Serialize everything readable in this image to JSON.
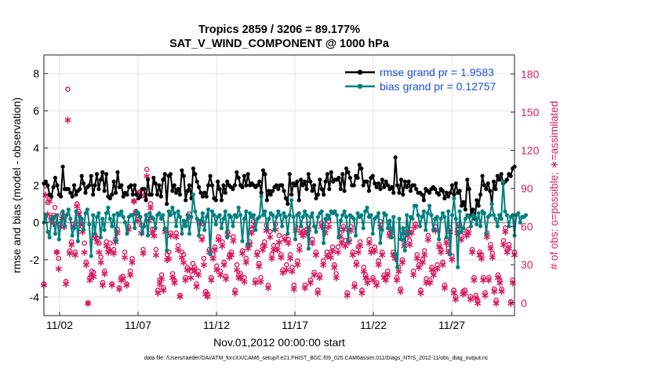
{
  "chart_data": {
    "type": "line",
    "title_line1": "Tropics 2859 / 3206 = 89.177%",
    "title_line2": "SAT_V_WIND_COMPONENT @ 1000 hPa",
    "xlabel": "Nov.01,2012 00:00:00 start",
    "ylabel_left": "rmse and bias (model - observation)",
    "ylabel_right": "# of obs: o=possible; ∗=assimilated",
    "footnote": "data file: /Users/raeder/DAI/ATM_forcXX/CAM6_setup/f.e21.FHIST_BGC.f09_025.CAM6assim.011/Diags_NTrS_2012-11/obs_diag_output.nc",
    "x_ticks": [
      {
        "day": 2,
        "label": "11/02"
      },
      {
        "day": 7,
        "label": "11/07"
      },
      {
        "day": 12,
        "label": "11/12"
      },
      {
        "day": 17,
        "label": "11/17"
      },
      {
        "day": 22,
        "label": "11/22"
      },
      {
        "day": 27,
        "label": "11/27"
      }
    ],
    "xlim": [
      1,
      31
    ],
    "ylim_left": [
      -5,
      9
    ],
    "ylim_right": [
      -10,
      195
    ],
    "y_ticks_left": [
      {
        "v": -4,
        "label": "-4"
      },
      {
        "v": -2,
        "label": "-2"
      },
      {
        "v": 0,
        "label": "0"
      },
      {
        "v": 2,
        "label": "2"
      },
      {
        "v": 4,
        "label": "4"
      },
      {
        "v": 6,
        "label": "6"
      },
      {
        "v": 8,
        "label": "8"
      }
    ],
    "y_ticks_right": [
      {
        "v": 0,
        "label": "0"
      },
      {
        "v": 30,
        "label": "30"
      },
      {
        "v": 60,
        "label": "60"
      },
      {
        "v": 90,
        "label": "90"
      },
      {
        "v": 120,
        "label": "120"
      },
      {
        "v": 150,
        "label": "150"
      },
      {
        "v": 180,
        "label": "180"
      }
    ],
    "series": [
      {
        "name": "rmse",
        "legend": "rmse grand pr = 1.9583",
        "color": "#000000",
        "values": [
          2.1,
          2.2,
          2.0,
          1.5,
          1.4,
          1.9,
          2.4,
          2.0,
          1.5,
          1.4,
          3.0,
          1.8,
          1.8,
          1.8,
          1.6,
          1.4,
          2.0,
          1.5,
          1.7,
          1.8,
          2.5,
          2.1,
          1.6,
          1.9,
          2.0,
          2.5,
          1.5,
          2.0,
          2.6,
          1.8,
          2.3,
          2.7,
          1.7,
          2.6,
          1.4,
          1.3,
          1.5,
          2.2,
          1.6,
          2.7,
          1.9,
          2.0,
          1.4,
          1.6,
          1.5,
          1.9,
          2.0,
          1.5,
          2.0,
          1.5,
          1.3,
          1.4,
          1.8,
          1.8,
          1.2,
          2.3,
          1.5,
          1.5,
          2.4,
          2.1,
          1.5,
          2.0,
          1.4,
          2.3,
          2.6,
          1.0,
          2.5,
          2.6,
          1.7,
          2.0,
          1.6,
          1.8,
          1.5,
          2.8,
          2.5,
          1.2,
          1.7,
          2.0,
          1.3,
          2.9,
          2.6,
          2.2,
          1.9,
          1.6,
          1.4,
          1.6,
          1.4,
          2.0,
          2.5,
          2.0,
          1.3,
          1.2,
          2.2,
          1.8,
          1.2,
          2.0,
          1.6,
          2.2,
          2.0,
          1.9,
          1.8,
          2.0,
          2.7,
          2.4,
          2.0,
          1.9,
          2.5,
          2.0,
          2.6,
          2.0,
          2.1,
          2.0,
          1.9,
          2.0,
          2.2,
          1.6,
          2.8,
          2.6,
          1.2,
          1.7,
          1.5,
          1.7,
          1.9,
          2.0,
          1.8,
          2.0,
          2.0,
          1.7,
          1.3,
          1.0,
          2.6,
          1.5,
          2.1,
          2.0,
          2.2,
          1.2,
          2.3,
          2.0,
          2.2,
          1.8,
          2.6,
          2.2,
          1.7,
          2.0,
          1.3,
          1.5,
          2.3,
          1.8,
          1.5,
          2.2,
          2.6,
          1.8,
          2.7,
          2.2,
          2.3,
          2.3,
          2.4,
          1.8,
          2.6,
          1.7,
          2.9,
          2.7,
          2.4,
          2.0,
          2.0,
          2.5,
          2.4,
          3.1,
          2.9,
          2.0,
          2.2,
          2.2,
          1.7,
          2.4,
          2.5,
          2.1,
          1.9,
          2.1,
          1.8,
          2.3,
          1.9,
          2.2,
          2.0,
          1.8,
          1.9,
          1.6,
          3.5,
          2.0,
          1.6,
          2.3,
          1.5,
          2.2,
          1.9,
          2.2,
          1.7,
          2.0,
          2.0,
          1.8,
          1.6,
          1.6,
          1.5,
          1.2,
          1.8,
          1.7,
          1.6,
          1.8,
          1.9,
          1.8,
          1.6,
          1.5,
          1.8,
          1.7,
          1.3,
          1.6,
          1.4,
          1.6,
          2.0,
          1.5,
          2.1,
          1.6,
          1.7,
          0.9,
          1.1,
          0.7,
          2.3,
          1.8,
          0.4,
          0.7,
          0.2,
          1.2,
          0.9,
          1.5,
          2.5,
          2.0,
          1.8,
          2.1,
          1.7,
          1.0,
          2.2,
          1.8,
          2.5,
          2.3,
          2.6,
          2.1,
          2.2,
          2.3,
          2.6,
          2.5,
          2.9,
          3.0
        ]
      },
      {
        "name": "bias",
        "legend": "bias grand pr = 0.12757",
        "color": "#008080",
        "values": [
          0.0,
          0.4,
          -0.5,
          -0.8,
          0.2,
          0.3,
          -0.6,
          0.4,
          -0.9,
          0.0,
          0.6,
          -0.2,
          0.4,
          0.7,
          0.2,
          -0.7,
          -0.3,
          0.6,
          -1.0,
          0.3,
          0.2,
          -0.4,
          0.5,
          0.7,
          -0.1,
          -1.8,
          0.4,
          -0.6,
          0.3,
          0.5,
          -0.8,
          0.2,
          -0.4,
          0.5,
          0.8,
          0.2,
          -0.2,
          0.4,
          -1.0,
          0.5,
          0.4,
          0.6,
          0.3,
          0.0,
          -0.6,
          0.3,
          0.4,
          0.4,
          -0.3,
          0.6,
          0.5,
          0.3,
          -0.6,
          -0.2,
          0.4,
          -0.7,
          0.5,
          0.3,
          0.2,
          -0.3,
          0.4,
          0.5,
          0.2,
          0.4,
          -0.3,
          -1.5,
          0.6,
          0.4,
          0.8,
          0.5,
          -0.2,
          0.6,
          0.3,
          -0.6,
          0.1,
          -0.2,
          0.4,
          -0.6,
          0.3,
          1.5,
          0.6,
          0.2,
          -0.7,
          0.1,
          0.5,
          -0.4,
          0.3,
          0.7,
          -1.7,
          0.6,
          0.4,
          -0.1,
          0.3,
          0.4,
          -0.3,
          0.2,
          0.6,
          -0.8,
          0.4,
          0.3,
          -0.2,
          0.4,
          0.3,
          0.8,
          0.4,
          -1.0,
          0.2,
          0.6,
          -1.2,
          0.5,
          0.3,
          0.4,
          -0.4,
          0.2,
          0.3,
          1.4,
          0.4,
          0.6,
          -0.3,
          0.2,
          0.5,
          0.4,
          -0.4,
          0.3,
          0.6,
          0.4,
          -0.2,
          0.5,
          0.3,
          -0.6,
          0.4,
          1.2,
          0.3,
          -0.9,
          0.4,
          0.5,
          -0.2,
          0.3,
          0.6,
          0.4,
          -1.4,
          0.3,
          0.5,
          -0.2,
          -0.5,
          0.3,
          0.5,
          0.6,
          -1.1,
          0.2,
          0.4,
          0.2,
          0.6,
          0.5,
          0.6,
          0.4,
          -0.8,
          0.1,
          0.4,
          0.6,
          0.3,
          -1.0,
          0.4,
          0.3,
          0.2,
          -0.7,
          0.5,
          0.3,
          0.4,
          -0.3,
          0.6,
          0.8,
          0.3,
          0.4,
          -0.6,
          0.2,
          0.3,
          0.5,
          -1.1,
          -0.4,
          0.5,
          0.4,
          -0.3,
          0.1,
          -0.8,
          0.3,
          -1.7,
          -2.4,
          0.2,
          -0.9,
          -0.3,
          -1.5,
          0.4,
          -0.6,
          0.3,
          0.2,
          0.9,
          0.9,
          0.4,
          -0.2,
          0.3,
          0.6,
          -0.4,
          0.5,
          0.9,
          0.4,
          -0.4,
          0.2,
          0.3,
          -0.9,
          0.2,
          0.5,
          0.3,
          -0.8,
          0.6,
          -1.7,
          0.4,
          1.3,
          0.2,
          -2.4,
          0.6,
          -0.5,
          -0.3,
          0.2,
          0.4,
          0.3,
          -0.2,
          0.4,
          0.3,
          -0.1,
          0.5,
          -0.2,
          0.6,
          0.5,
          -0.6,
          0.3,
          0.4,
          1.0,
          0.4,
          0.2,
          -0.2,
          0.4,
          0.2,
          2.2,
          0.6,
          0.4,
          -0.2,
          0.3,
          0.4,
          -0.7,
          0.4,
          0.5,
          0.0,
          0.3,
          0.3,
          0.4
        ]
      }
    ],
    "obs_possible": [
      15,
      92,
      79,
      82,
      67,
      69,
      75,
      40,
      35,
      62,
      70,
      68,
      17,
      168,
      41,
      48,
      62,
      40,
      78,
      72,
      65,
      60,
      47,
      32,
      0,
      20,
      25,
      24,
      53,
      51,
      47,
      36,
      16,
      25,
      48,
      42,
      47,
      15,
      42,
      50,
      58,
      12,
      20,
      21,
      40,
      15,
      60,
      25,
      35,
      80,
      72,
      69,
      87,
      61,
      42,
      85,
      105,
      69,
      78,
      58,
      58,
      42,
      10,
      18,
      22,
      12,
      58,
      38,
      40,
      55,
      23,
      18,
      55,
      45,
      6,
      40,
      38,
      20,
      28,
      70,
      25,
      31,
      28,
      15,
      25,
      64,
      52,
      35,
      9,
      7,
      42,
      20,
      38,
      44,
      29,
      52,
      25,
      48,
      32,
      21,
      56,
      38,
      40,
      52,
      10,
      30,
      22,
      23,
      41,
      20,
      35,
      46,
      48,
      58,
      64,
      18,
      40,
      31,
      20,
      45,
      48,
      61,
      14,
      56,
      38,
      45,
      62,
      45,
      53,
      38,
      26,
      52,
      30,
      50,
      38,
      28,
      14,
      60,
      33,
      45,
      58,
      56,
      14,
      58,
      62,
      18,
      50,
      24,
      40,
      10,
      22,
      63,
      33,
      58,
      40,
      64,
      40,
      44,
      30,
      23,
      44,
      55,
      50,
      60,
      49,
      8,
      50,
      60,
      40,
      15,
      32,
      44,
      48,
      10,
      28,
      22,
      18,
      50,
      42,
      20,
      44,
      16,
      33,
      64,
      40,
      22,
      20,
      25,
      55,
      58,
      40,
      38,
      20,
      28,
      11,
      34,
      48,
      58,
      56,
      49,
      58,
      25,
      62,
      38,
      30,
      10,
      34,
      41,
      19,
      53,
      18,
      28,
      24,
      60,
      30,
      46,
      42,
      32,
      14,
      50,
      43,
      59,
      37,
      10,
      5,
      58,
      62,
      53,
      9,
      10,
      56,
      58,
      5,
      42,
      20,
      6,
      2,
      40,
      38,
      20,
      8,
      55,
      20,
      46,
      39,
      11,
      2,
      22,
      18,
      11,
      49,
      59,
      42,
      46,
      1,
      18,
      40
    ],
    "obs_assimilated": [
      14,
      85,
      70,
      80,
      65,
      63,
      68,
      40,
      27,
      60,
      67,
      60,
      15,
      144,
      39,
      46,
      60,
      38,
      76,
      70,
      62,
      56,
      40,
      30,
      0,
      18,
      22,
      21,
      51,
      48,
      40,
      32,
      14,
      23,
      45,
      40,
      42,
      14,
      39,
      48,
      55,
      11,
      18,
      19,
      36,
      14,
      58,
      22,
      32,
      80,
      70,
      65,
      87,
      55,
      39,
      84,
      100,
      65,
      75,
      55,
      53,
      38,
      8,
      15,
      19,
      10,
      56,
      34,
      35,
      53,
      20,
      16,
      52,
      42,
      5,
      36,
      32,
      18,
      26,
      68,
      20,
      27,
      25,
      13,
      22,
      62,
      50,
      30,
      7,
      5,
      40,
      18,
      35,
      42,
      26,
      50,
      22,
      45,
      30,
      19,
      54,
      36,
      38,
      49,
      8,
      26,
      20,
      20,
      39,
      17,
      32,
      43,
      46,
      55,
      60,
      16,
      38,
      29,
      17,
      42,
      45,
      57,
      12,
      52,
      35,
      42,
      58,
      42,
      48,
      36,
      24,
      50,
      26,
      47,
      35,
      25,
      11,
      57,
      30,
      42,
      55,
      53,
      12,
      55,
      58,
      16,
      47,
      22,
      38,
      8,
      20,
      60,
      30,
      55,
      37,
      60,
      36,
      41,
      28,
      20,
      40,
      52,
      47,
      58,
      45,
      6,
      48,
      57,
      38,
      13,
      30,
      40,
      45,
      8,
      25,
      20,
      16,
      47,
      40,
      18,
      41,
      14,
      30,
      60,
      38,
      20,
      18,
      22,
      53,
      55,
      38,
      35,
      18,
      25,
      9,
      32,
      45,
      55,
      53,
      46,
      55,
      22,
      60,
      35,
      28,
      8,
      32,
      38,
      16,
      50,
      16,
      26,
      22,
      57,
      27,
      44,
      40,
      30,
      12,
      47,
      40,
      56,
      34,
      8,
      3,
      55,
      60,
      50,
      7,
      8,
      53,
      55,
      3,
      40,
      18,
      4,
      0,
      38,
      35,
      18,
      6,
      52,
      18,
      43,
      36,
      9,
      0,
      20,
      16,
      9,
      46,
      56,
      40,
      43,
      0,
      16,
      38
    ],
    "legend_position": "top-right"
  },
  "colors": {
    "rmse": "#000000",
    "bias": "#008080",
    "obs": "#d81b60",
    "legend_text": "#1d4fd8",
    "zero_line": "#a6a6a6"
  }
}
